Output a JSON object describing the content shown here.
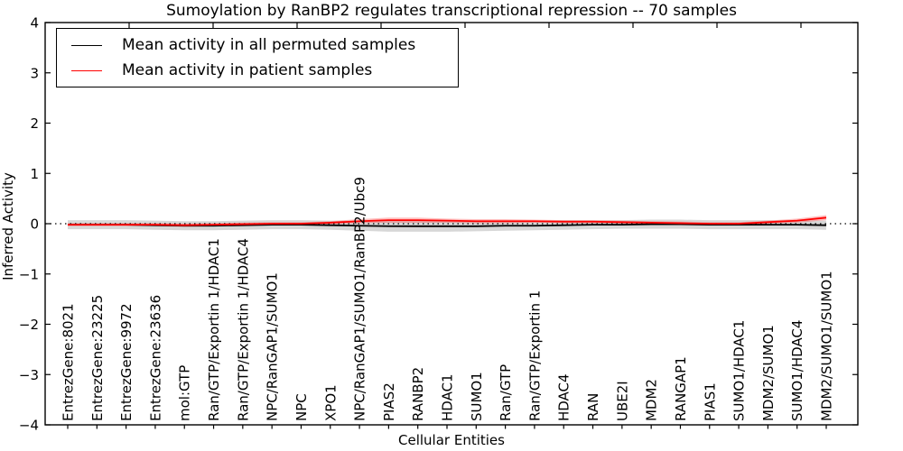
{
  "chart_data": {
    "type": "line",
    "title": "Sumoylation by RanBP2 regulates transcriptional repression -- 70 samples",
    "xlabel": "Cellular Entities",
    "ylabel": "Inferred Activity",
    "ylim": [
      -4,
      4
    ],
    "ytick_values": [
      -4,
      -3,
      -2,
      -1,
      0,
      1,
      2,
      3,
      4
    ],
    "ytick_labels": [
      "−4",
      "−3",
      "−2",
      "−1",
      "0",
      "1",
      "2",
      "3",
      "4"
    ],
    "grid": false,
    "zero_line": {
      "value": 0,
      "style": "dotted",
      "color": "#000000"
    },
    "legend": {
      "position": "upper left"
    },
    "categories": [
      "EntrezGene:8021",
      "EntrezGene:23225",
      "EntrezGene:9972",
      "EntrezGene:23636",
      "mol:GTP",
      "Ran/GTP/Exportin 1/HDAC1",
      "Ran/GTP/Exportin 1/HDAC4",
      "NPC/RanGAP1/SUMO1",
      "NPC",
      "XPO1",
      "NPC/RanGAP1/SUMO1/RanBP2/Ubc9",
      "PIAS2",
      "RANBP2",
      "HDAC1",
      "SUMO1",
      "Ran/GTP",
      "Ran/GTP/Exportin 1",
      "HDAC4",
      "RAN",
      "UBE2I",
      "MDM2",
      "RANGAP1",
      "PIAS1",
      "SUMO1/HDAC1",
      "MDM2/SUMO1",
      "SUMO1/HDAC4",
      "MDM2/SUMO1/SUMO1"
    ],
    "series": [
      {
        "name": "Mean activity in all permuted samples",
        "color": "#000000",
        "band_color": "rgba(150,150,150,0.38)",
        "values": [
          -0.02,
          -0.02,
          -0.02,
          -0.03,
          -0.04,
          -0.04,
          -0.03,
          -0.02,
          -0.02,
          -0.03,
          -0.04,
          -0.05,
          -0.05,
          -0.05,
          -0.05,
          -0.04,
          -0.04,
          -0.03,
          -0.02,
          -0.02,
          -0.01,
          -0.01,
          -0.02,
          -0.02,
          -0.02,
          -0.02,
          -0.03
        ],
        "band_upper": [
          0.07,
          0.07,
          0.07,
          0.06,
          0.05,
          0.05,
          0.06,
          0.07,
          0.07,
          0.06,
          0.06,
          0.06,
          0.06,
          0.06,
          0.06,
          0.06,
          0.06,
          0.07,
          0.07,
          0.07,
          0.08,
          0.08,
          0.07,
          0.07,
          0.07,
          0.07,
          0.06
        ],
        "band_lower": [
          -0.11,
          -0.11,
          -0.11,
          -0.12,
          -0.13,
          -0.13,
          -0.12,
          -0.11,
          -0.11,
          -0.12,
          -0.14,
          -0.16,
          -0.16,
          -0.16,
          -0.15,
          -0.14,
          -0.13,
          -0.12,
          -0.11,
          -0.1,
          -0.1,
          -0.1,
          -0.11,
          -0.11,
          -0.11,
          -0.11,
          -0.12
        ]
      },
      {
        "name": "Mean activity in patient samples",
        "color": "#ff0000",
        "band_color": "rgba(255,40,40,0.30)",
        "values": [
          -0.02,
          -0.02,
          -0.02,
          -0.02,
          -0.03,
          -0.02,
          -0.01,
          0.0,
          0.0,
          0.02,
          0.05,
          0.07,
          0.07,
          0.06,
          0.05,
          0.05,
          0.05,
          0.04,
          0.04,
          0.03,
          0.02,
          0.01,
          0.0,
          0.0,
          0.03,
          0.06,
          0.12
        ],
        "band_upper": [
          0.01,
          0.01,
          0.01,
          0.01,
          0.0,
          0.01,
          0.02,
          0.03,
          0.03,
          0.05,
          0.09,
          0.12,
          0.12,
          0.1,
          0.09,
          0.09,
          0.08,
          0.07,
          0.07,
          0.06,
          0.05,
          0.04,
          0.03,
          0.03,
          0.06,
          0.1,
          0.17
        ],
        "band_lower": [
          -0.05,
          -0.05,
          -0.05,
          -0.05,
          -0.06,
          -0.05,
          -0.04,
          -0.03,
          -0.03,
          -0.01,
          0.01,
          0.02,
          0.02,
          0.02,
          0.01,
          0.01,
          0.02,
          0.01,
          0.01,
          0.0,
          -0.01,
          -0.02,
          -0.03,
          -0.03,
          0.0,
          0.02,
          0.07
        ]
      }
    ]
  }
}
